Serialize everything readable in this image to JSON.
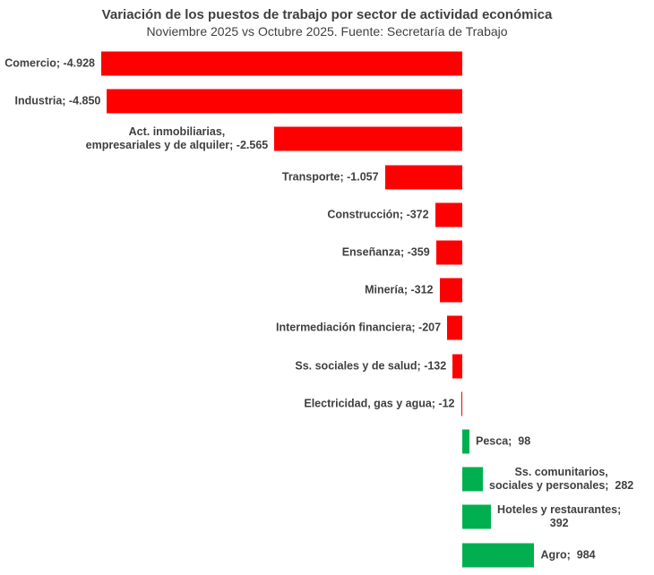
{
  "chart_data": {
    "type": "bar",
    "orientation": "horizontal",
    "title": "Variación de los puestos de trabajo por sector de actividad económica",
    "subtitle": "Noviembre 2025 vs Octubre 2025. Fuente: Secretaría de Trabajo",
    "categories": [
      "Comercio",
      "Industria",
      "Act. inmobiliarias, empresariales y de alquiler",
      "Transporte",
      "Construcción",
      "Enseñanza",
      "Minería",
      "Intermediación financiera",
      "Ss. sociales y de salud",
      "Electricidad, gas y agua",
      "Pesca",
      "Ss. comunitarios, sociales y personales",
      "Hoteles y restaurantes",
      "Agro"
    ],
    "values": [
      -4928,
      -4850,
      -2565,
      -1057,
      -372,
      -359,
      -312,
      -207,
      -132,
      -12,
      98,
      282,
      392,
      984
    ],
    "data_labels": [
      [
        "Comercio; -4.928"
      ],
      [
        "Industria; -4.850"
      ],
      [
        "Act. inmobiliarias,",
        "empresariales y de alquiler; -2.565"
      ],
      [
        "Transporte; -1.057"
      ],
      [
        "Construcción; -372"
      ],
      [
        "Enseñanza; -359"
      ],
      [
        "Minería; -312"
      ],
      [
        "Intermediación financiera; -207"
      ],
      [
        "Ss. sociales y de salud; -132"
      ],
      [
        "Electricidad, gas y agua; -12"
      ],
      [
        "Pesca;  98"
      ],
      [
        "Ss. comunitarios,",
        "sociales y personales;  282"
      ],
      [
        "Hoteles y restaurantes;",
        "392"
      ],
      [
        "Agro;  984"
      ]
    ],
    "colors": {
      "negative": "#FF0000",
      "positive": "#00B050",
      "label": "#404040"
    },
    "legend": "none",
    "grid": false,
    "value_range": [
      -4928,
      984
    ]
  }
}
